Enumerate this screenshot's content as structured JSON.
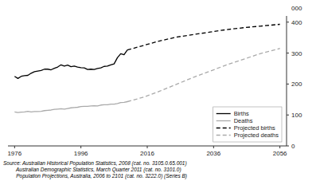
{
  "chart_data": {
    "type": "line",
    "ylabel": "000",
    "xlim": [
      1974,
      2058
    ],
    "ylim": [
      0,
      420
    ],
    "xticks": [
      1976,
      1996,
      2016,
      2036,
      2056
    ],
    "yticks": [
      0,
      100,
      200,
      300,
      400
    ],
    "grid": false,
    "legend": "lower right",
    "series": [
      {
        "name": "Births",
        "color": "#000000",
        "line_style": "solid",
        "x": [
          1976,
          1977,
          1978,
          1979,
          1980,
          1981,
          1982,
          1983,
          1984,
          1985,
          1986,
          1987,
          1988,
          1989,
          1990,
          1991,
          1992,
          1993,
          1994,
          1995,
          1996,
          1997,
          1998,
          1999,
          2000,
          2001,
          2002,
          2003,
          2004,
          2005,
          2006,
          2007,
          2008,
          2009,
          2010
        ],
        "values": [
          225,
          218,
          225,
          227,
          228,
          235,
          240,
          242,
          244,
          248,
          248,
          246,
          251,
          255,
          262,
          258,
          261,
          256,
          258,
          255,
          253,
          252,
          247,
          248,
          247,
          250,
          252,
          257,
          258,
          262,
          265,
          285,
          298,
          295,
          310
        ]
      },
      {
        "name": "Deaths",
        "color": "#aaaaaa",
        "line_style": "solid",
        "x": [
          1976,
          1977,
          1978,
          1979,
          1980,
          1981,
          1982,
          1983,
          1984,
          1985,
          1986,
          1987,
          1988,
          1989,
          1990,
          1991,
          1992,
          1993,
          1994,
          1995,
          1996,
          1997,
          1998,
          1999,
          2000,
          2001,
          2002,
          2003,
          2004,
          2005,
          2006,
          2007,
          2008,
          2009,
          2010
        ],
        "values": [
          110,
          108,
          109,
          110,
          112,
          110,
          111,
          111,
          112,
          114,
          115,
          116,
          118,
          119,
          120,
          119,
          121,
          123,
          124,
          125,
          127,
          128,
          128,
          129,
          130,
          129,
          132,
          133,
          133,
          135,
          135,
          137,
          140,
          141,
          143
        ]
      },
      {
        "name": "Projected births",
        "color": "#000000",
        "line_style": "dashed",
        "x": [
          2010,
          2015,
          2020,
          2025,
          2030,
          2035,
          2040,
          2045,
          2050,
          2055,
          2056
        ],
        "values": [
          310,
          325,
          340,
          352,
          360,
          368,
          376,
          382,
          387,
          392,
          393
        ]
      },
      {
        "name": "Projected deaths",
        "color": "#aaaaaa",
        "line_style": "dashed",
        "x": [
          2010,
          2015,
          2020,
          2025,
          2030,
          2035,
          2040,
          2045,
          2050,
          2055,
          2056
        ],
        "values": [
          143,
          158,
          178,
          200,
          222,
          242,
          262,
          280,
          298,
          312,
          315
        ]
      }
    ],
    "annotations": [
      "Source: Australian Historical Population Statistics, 2008 (cat. no. 3105.0.65.001)",
      "         Australian Demographic Statistics, March Quarter 2011 (cat. no. 3101.0)",
      "         Population Projections, Australia, 2006 to 2101 (cat. no. 3222.0) (Series B)"
    ]
  }
}
